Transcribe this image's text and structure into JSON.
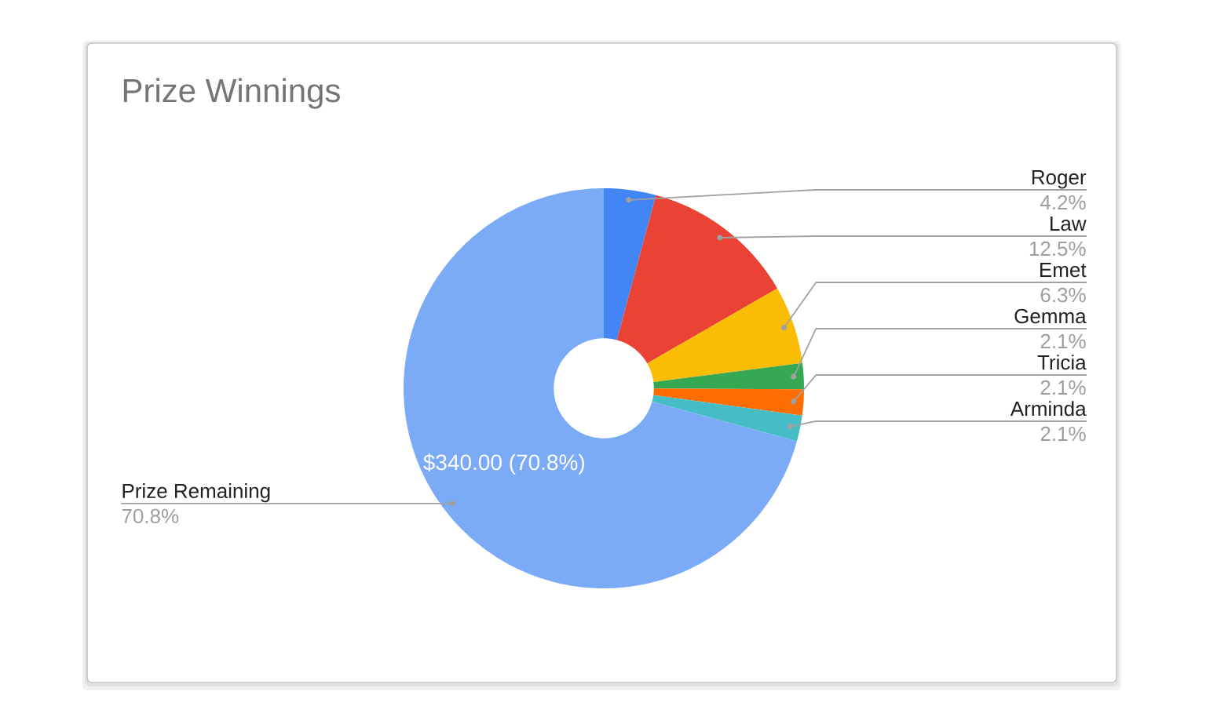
{
  "chart_data": {
    "type": "donut",
    "title": "Prize Winnings",
    "categories": [
      "Roger",
      "Law",
      "Emet",
      "Gemma",
      "Tricia",
      "Arminda",
      "Prize Remaining"
    ],
    "values": [
      4.2,
      12.5,
      6.3,
      2.1,
      2.1,
      2.1,
      70.8
    ],
    "colors": [
      "#4285f4",
      "#ea4335",
      "#fbbc04",
      "#34a853",
      "#ff6d01",
      "#46bdc6",
      "#7baaf7"
    ],
    "value_labels": [
      "4.2%",
      "12.5%",
      "6.3%",
      "2.1%",
      "2.1%",
      "2.1%",
      "70.8%"
    ],
    "annotations": [
      {
        "text": "$340.00 (70.8%)",
        "x": "Prize Remaining"
      }
    ]
  }
}
